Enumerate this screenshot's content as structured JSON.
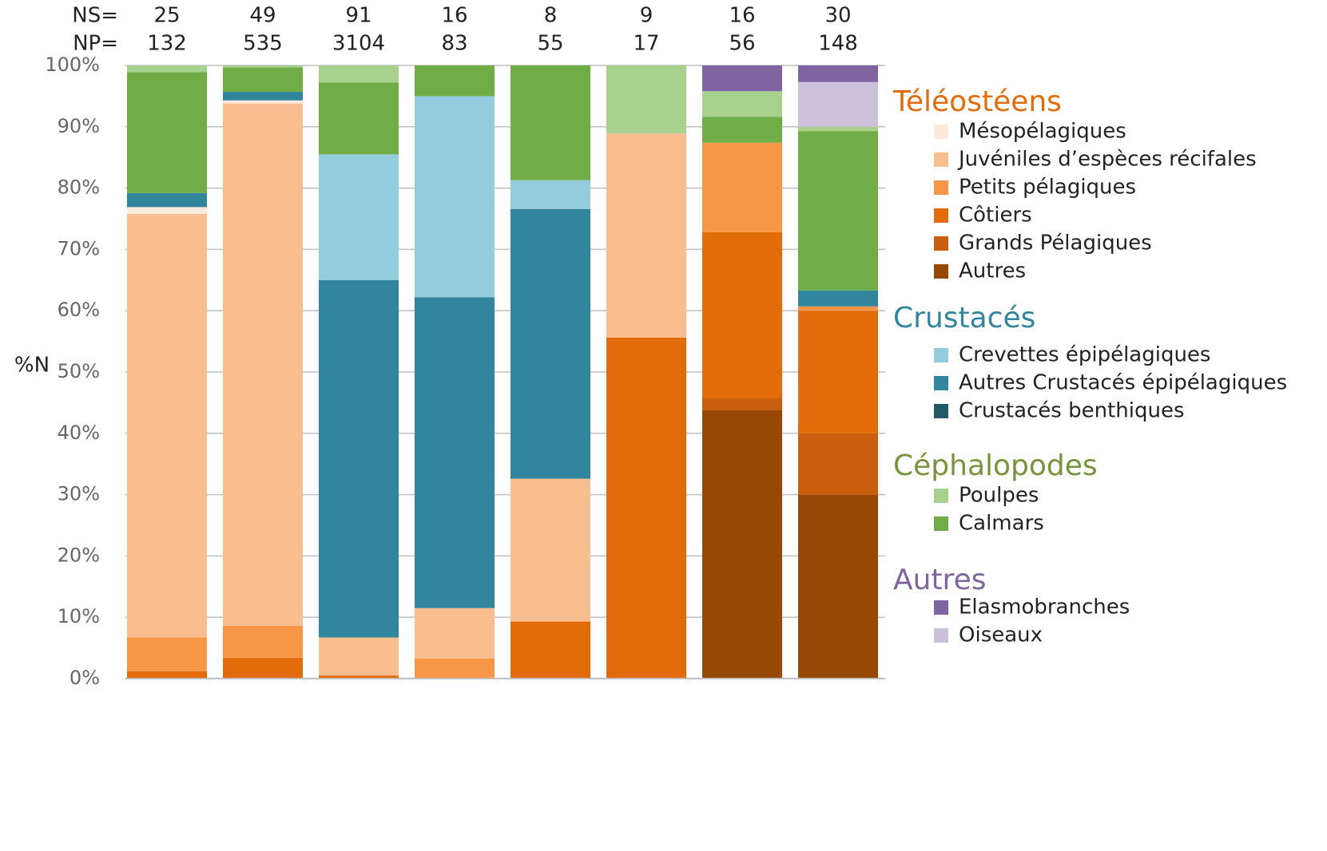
{
  "chart_data": {
    "type": "bar",
    "stacked": true,
    "categories": [
      null,
      null,
      null,
      null,
      null,
      null,
      null,
      null
    ],
    "ns_label": "NS=",
    "ns": [
      25,
      49,
      91,
      16,
      8,
      9,
      16,
      30
    ],
    "np_label": "NP=",
    "np": [
      132,
      535,
      3104,
      83,
      55,
      17,
      56,
      148
    ],
    "y_label": "%N",
    "ylim": [
      0,
      100
    ],
    "yticks": [
      {
        "value": 0,
        "label": "0%"
      },
      {
        "value": 10,
        "label": "10%"
      },
      {
        "value": 20,
        "label": "20%"
      },
      {
        "value": 30,
        "label": "30%"
      },
      {
        "value": 40,
        "label": "40%"
      },
      {
        "value": 50,
        "label": "50%"
      },
      {
        "value": 60,
        "label": "60%"
      },
      {
        "value": 70,
        "label": "70%"
      },
      {
        "value": 80,
        "label": "80%"
      },
      {
        "value": 90,
        "label": "90%"
      },
      {
        "value": 100,
        "label": "100%"
      }
    ],
    "grid": true,
    "groups": [
      {
        "title": "Téléostéens",
        "color": "#e36c0a",
        "series": [
          {
            "name": "Mésopélagiques",
            "color": "#fde9d9",
            "values": [
              1.1,
              0.5,
              0,
              0,
              0,
              0,
              0,
              0
            ]
          },
          {
            "name": "Juvéniles d’espèces récifales",
            "color": "#f9be8f",
            "values": [
              69.1,
              85.2,
              6.2,
              8.2,
              23.3,
              33.3,
              0,
              0
            ]
          },
          {
            "name": "Petits pélagiques",
            "color": "#f79646",
            "values": [
              5.5,
              5.2,
              0,
              3.3,
              0,
              0,
              14.6,
              0.7
            ]
          },
          {
            "name": "Côtiers",
            "color": "#e36c0a",
            "values": [
              1.2,
              3.4,
              0.5,
              0,
              9.3,
              55.6,
              27.1,
              20.0
            ]
          },
          {
            "name": "Grands Pélagiques",
            "color": "#c95f0e",
            "values": [
              0,
              0,
              0,
              0,
              0,
              0,
              1.9,
              10.0
            ]
          },
          {
            "name": "Autres",
            "color": "#974706",
            "values": [
              0,
              0,
              0,
              0,
              0,
              0,
              43.8,
              30.0
            ]
          }
        ]
      },
      {
        "title": "Crustacés",
        "color": "#31859c",
        "series": [
          {
            "name": "Crevettes épipélagiques",
            "color": "#93cddd",
            "values": [
              0,
              0,
              20.5,
              32.8,
              4.7,
              0,
              0,
              0
            ]
          },
          {
            "name": "Autres Crustacés épipélagiques",
            "color": "#31859c",
            "values": [
              2.3,
              1.4,
              58.3,
              50.7,
              44.0,
              0,
              0,
              2.6
            ]
          },
          {
            "name": "Crustacés benthiques",
            "color": "#215968",
            "values": [
              0,
              0,
              0,
              0,
              0,
              0,
              0,
              0
            ]
          }
        ]
      },
      {
        "title": "Céphalopodes",
        "color": "#77933c",
        "series": [
          {
            "name": "Poulpes",
            "color": "#a9d18e",
            "values": [
              1.1,
              0.3,
              2.8,
              0,
              0,
              11.1,
              4.2,
              0.7
            ]
          },
          {
            "name": "Calmars",
            "color": "#70ad47",
            "values": [
              19.7,
              4.0,
              11.7,
              5.0,
              18.7,
              0,
              4.2,
              26.0
            ]
          }
        ]
      },
      {
        "title": "Autres",
        "color": "#7f64a2",
        "series": [
          {
            "name": "Elasmobranches",
            "color": "#8064a2",
            "values": [
              0,
              0,
              0,
              0,
              0,
              0,
              4.2,
              2.7
            ]
          },
          {
            "name": "Oiseaux",
            "color": "#ccc0da",
            "values": [
              0,
              0,
              0,
              0,
              0,
              0,
              0,
              7.3
            ]
          }
        ]
      }
    ]
  }
}
